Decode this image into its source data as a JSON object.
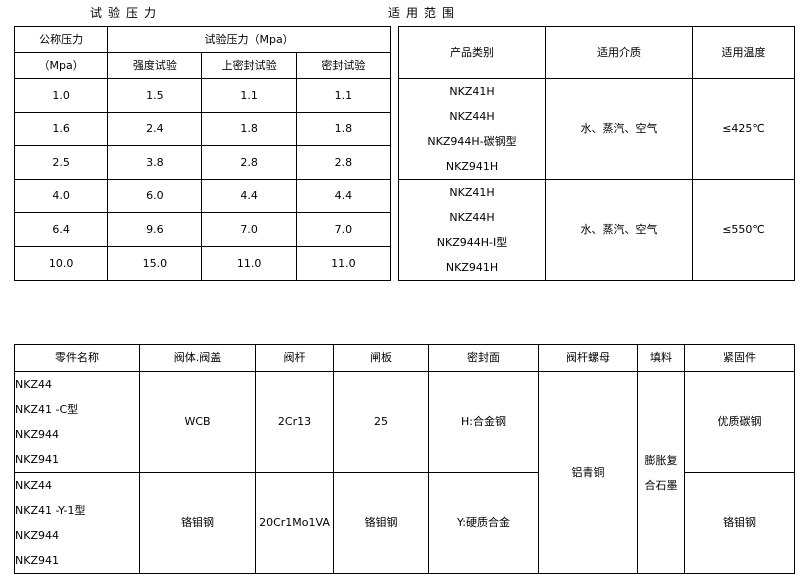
{
  "captions": {
    "test_pressure": "试验压力",
    "application_range": "适用范围"
  },
  "pressure_table": {
    "nominal_header": "公称压力",
    "nominal_unit": "（Mpa）",
    "test_header": "试验压力（Mpa）",
    "sub_headers": [
      "强度试验",
      "上密封试验",
      "密封试验"
    ],
    "rows": [
      [
        "1.0",
        "1.5",
        "1.1",
        "1.1"
      ],
      [
        "1.6",
        "2.4",
        "1.8",
        "1.8"
      ],
      [
        "2.5",
        "3.8",
        "2.8",
        "2.8"
      ],
      [
        "4.0",
        "6.0",
        "4.4",
        "4.4"
      ],
      [
        "6.4",
        "9.6",
        "7.0",
        "7.0"
      ],
      [
        "10.0",
        "15.0",
        "11.0",
        "11.0"
      ]
    ]
  },
  "range_table": {
    "headers": [
      "产品类别",
      "适用介质",
      "适用温度"
    ],
    "groups": [
      {
        "products": [
          "NKZ41H",
          "NKZ44H",
          "NKZ944H-碳钢型",
          "NKZ941H"
        ],
        "medium": "水、蒸汽、空气",
        "temp": "≤425℃"
      },
      {
        "products": [
          "NKZ41H",
          "NKZ44H",
          "NKZ944H-I型",
          "NKZ941H"
        ],
        "medium": "水、蒸汽、空气",
        "temp": "≤550℃"
      }
    ]
  },
  "material_table": {
    "headers": [
      "零件名称",
      "阀体.阀盖",
      "阀杆",
      "闸板",
      "密封面",
      "阀杆螺母",
      "填料",
      "紧固件"
    ],
    "rows": [
      {
        "parts": [
          "NKZ44",
          "NKZ41 -C型",
          "NKZ944",
          "NKZ941"
        ],
        "body": "WCB",
        "stem": "2Cr13",
        "gate": "25",
        "seal": "H:合金钢",
        "fastener": "优质碳钢"
      },
      {
        "parts": [
          "NKZ44",
          "NKZ41 -Y-1型",
          "NKZ944",
          "NKZ941"
        ],
        "body": "铬钼钢",
        "stem": "20Cr1Mo1VA",
        "gate": "铬钼钢",
        "seal": "Y:硬质合金",
        "fastener": "铬钼钢"
      }
    ],
    "stem_nut": "铝青铜",
    "packing": "膨胀复合石墨"
  }
}
